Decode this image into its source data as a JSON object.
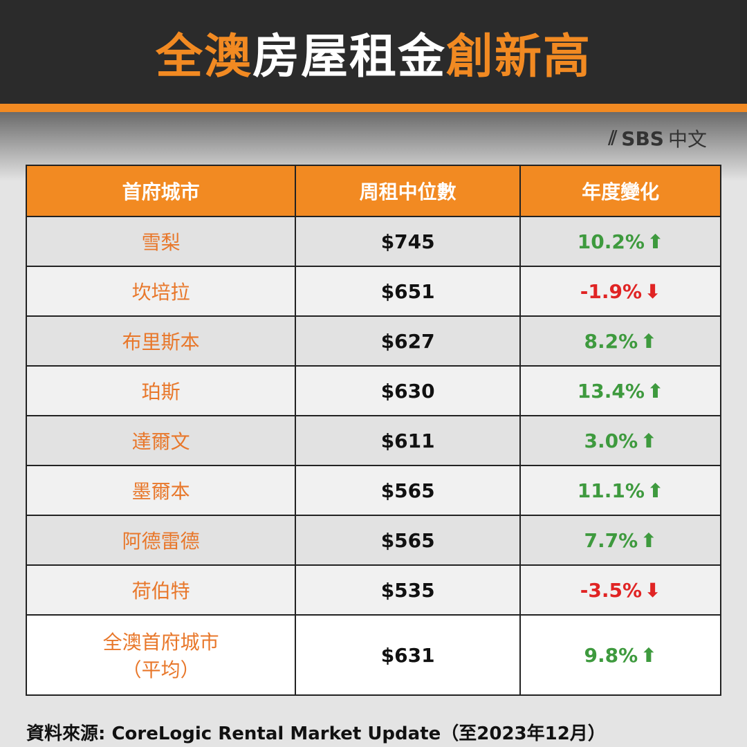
{
  "title": {
    "part1": "全澳",
    "part2": "房屋租金",
    "part3": "創新高"
  },
  "logo": {
    "brand": "SBS",
    "lang": "中文"
  },
  "table": {
    "headers": [
      "首府城市",
      "周租中位數",
      "年度變化"
    ],
    "rows": [
      {
        "city": "雪梨",
        "rent": "$745",
        "change": "10.2%",
        "dir": "up"
      },
      {
        "city": "坎培拉",
        "rent": "$651",
        "change": "-1.9%",
        "dir": "down"
      },
      {
        "city": "布里斯本",
        "rent": "$627",
        "change": "8.2%",
        "dir": "up"
      },
      {
        "city": "珀斯",
        "rent": "$630",
        "change": "13.4%",
        "dir": "up"
      },
      {
        "city": "達爾文",
        "rent": "$611",
        "change": "3.0%",
        "dir": "up"
      },
      {
        "city": "墨爾本",
        "rent": "$565",
        "change": "11.1%",
        "dir": "up"
      },
      {
        "city": "阿德雷德",
        "rent": "$565",
        "change": "7.7%",
        "dir": "up"
      },
      {
        "city": "荷伯特",
        "rent": "$535",
        "change": "-3.5%",
        "dir": "down"
      }
    ],
    "total": {
      "city_line1": "全澳首府城市",
      "city_line2": "（平均）",
      "rent": "$631",
      "change": "9.8%",
      "dir": "up"
    }
  },
  "colors": {
    "accent": "#f28a22",
    "up": "#3e9a3e",
    "down": "#e02424",
    "header_bg": "#2b2b2b"
  },
  "source": "資料來源: CoreLogic Rental Market Update（至2023年12月）"
}
